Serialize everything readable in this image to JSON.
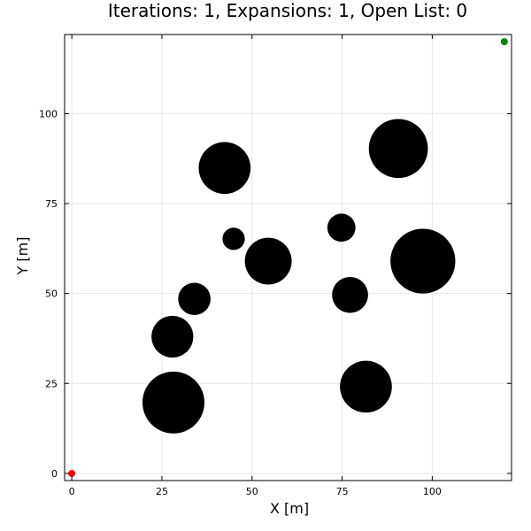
{
  "chart_data": {
    "type": "scatter",
    "title": "Iterations: 1, Expansions: 1, Open List: 0",
    "xlabel": "X [m]",
    "ylabel": "Y [m]",
    "xlim": [
      -2,
      122
    ],
    "ylim": [
      -2,
      122
    ],
    "xticks": [
      0,
      25,
      50,
      75,
      100
    ],
    "yticks": [
      0,
      25,
      50,
      75,
      100
    ],
    "xtick_labels": [
      "0",
      "25",
      "50",
      "75",
      "100"
    ],
    "ytick_labels": [
      "0",
      "25",
      "50",
      "75",
      "100"
    ],
    "grid": true,
    "obstacles": [
      {
        "x": 42.4,
        "y": 84.9,
        "r": 7.2
      },
      {
        "x": 90.6,
        "y": 90.3,
        "r": 8.2
      },
      {
        "x": 44.9,
        "y": 65.2,
        "r": 3.1
      },
      {
        "x": 74.8,
        "y": 68.3,
        "r": 3.9
      },
      {
        "x": 54.5,
        "y": 59.0,
        "r": 6.5
      },
      {
        "x": 97.4,
        "y": 59.0,
        "r": 9.0
      },
      {
        "x": 34.0,
        "y": 48.5,
        "r": 4.5
      },
      {
        "x": 77.2,
        "y": 49.6,
        "r": 5.0
      },
      {
        "x": 27.9,
        "y": 38.0,
        "r": 5.8
      },
      {
        "x": 81.6,
        "y": 24.1,
        "r": 7.2
      },
      {
        "x": 28.2,
        "y": 19.7,
        "r": 8.6
      }
    ],
    "points": [
      {
        "name": "start",
        "x": 0,
        "y": 0,
        "color": "#ff0000"
      },
      {
        "name": "goal",
        "x": 120,
        "y": 120,
        "color": "#008000"
      }
    ],
    "colors": {
      "obstacle": "#000000",
      "background": "#ffffff",
      "grid": "#e6e6e6"
    }
  }
}
